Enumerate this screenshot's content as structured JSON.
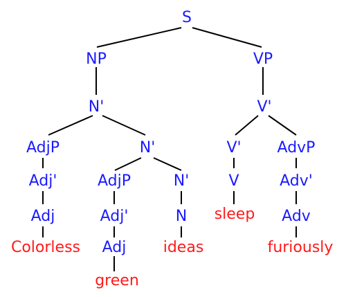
{
  "tree": {
    "colors": {
      "category": "#1a1aff",
      "word": "#ff1a1a",
      "line": "#000000"
    },
    "nodes": {
      "s": "S",
      "np": "NP",
      "vp": "VP",
      "n_bar_top": "N'",
      "v_bar_top": "V'",
      "adjp_1": "AdjP",
      "n_bar_mid": "N'",
      "v_bar_low": "V'",
      "advp": "AdvP",
      "adj_bar_1": "Adj'",
      "adjp_2": "AdjP",
      "n_bar_low": "N'",
      "v": "V",
      "adv_bar": "Adv'",
      "adj_1": "Adj",
      "adj_bar_2": "Adj'",
      "n": "N",
      "adv": "Adv",
      "adj_2": "Adj"
    },
    "words": {
      "colorless": "Colorless",
      "green": "green",
      "ideas": "ideas",
      "sleep": "sleep",
      "furiously": "furiously"
    }
  }
}
